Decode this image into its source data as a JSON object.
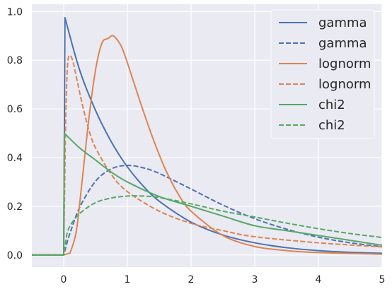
{
  "chart_data": {
    "type": "line",
    "xlim": [
      -0.5,
      5
    ],
    "ylim": [
      -0.05,
      1.03
    ],
    "grid": true,
    "legend_position": "top-right",
    "colors": {
      "background": "#eaeaf2",
      "grid": "#ffffff",
      "gamma": "#4c72b0",
      "lognorm": "#dd8452",
      "chi2": "#55a868"
    },
    "x_ticks": [
      {
        "value": 0,
        "label": "0"
      },
      {
        "value": 1,
        "label": "1"
      },
      {
        "value": 2,
        "label": "2"
      },
      {
        "value": 3,
        "label": "3"
      },
      {
        "value": 4,
        "label": "4"
      },
      {
        "value": 5,
        "label": "5"
      }
    ],
    "y_ticks": [
      {
        "value": 0.0,
        "label": "0.0"
      },
      {
        "value": 0.2,
        "label": "0.2"
      },
      {
        "value": 0.4,
        "label": "0.4"
      },
      {
        "value": 0.6,
        "label": "0.6"
      },
      {
        "value": 0.8,
        "label": "0.8"
      },
      {
        "value": 1.0,
        "label": "1.0"
      }
    ],
    "series": [
      {
        "name": "gamma",
        "color": "#4c72b0",
        "dashed": false,
        "x": [
          -0.5,
          0,
          0.02,
          0.25,
          0.5,
          0.75,
          1.0,
          1.25,
          1.5,
          2.0,
          2.5,
          3.0,
          3.5,
          4.0,
          4.5,
          5.0
        ],
        "y": [
          0,
          0,
          0.975,
          0.76,
          0.594,
          0.464,
          0.362,
          0.283,
          0.221,
          0.135,
          0.082,
          0.05,
          0.03,
          0.018,
          0.011,
          0.007
        ]
      },
      {
        "name": "gamma",
        "color": "#4c72b0",
        "dashed": true,
        "x": [
          -0.5,
          0,
          0.05,
          0.1,
          0.25,
          0.5,
          0.75,
          1.0,
          1.25,
          1.5,
          2.0,
          2.5,
          3.0,
          3.5,
          4.0,
          4.5,
          5.0
        ],
        "y": [
          0,
          0,
          0.048,
          0.09,
          0.195,
          0.303,
          0.354,
          0.368,
          0.358,
          0.335,
          0.271,
          0.205,
          0.149,
          0.106,
          0.073,
          0.05,
          0.034
        ]
      },
      {
        "name": "lognorm",
        "color": "#dd8452",
        "dashed": false,
        "x": [
          -0.5,
          0,
          0.1,
          0.2,
          0.3,
          0.4,
          0.5,
          0.6,
          0.7,
          0.78,
          0.9,
          1.0,
          1.2,
          1.4,
          1.6,
          1.8,
          2.0,
          2.5,
          3.0,
          3.5,
          4.0,
          5.0
        ],
        "y": [
          0,
          0,
          0.008,
          0.1,
          0.33,
          0.57,
          0.76,
          0.87,
          0.89,
          0.9,
          0.86,
          0.79,
          0.63,
          0.48,
          0.35,
          0.25,
          0.18,
          0.08,
          0.035,
          0.018,
          0.01,
          0.003
        ]
      },
      {
        "name": "lognorm",
        "color": "#dd8452",
        "dashed": true,
        "x": [
          -0.5,
          0,
          0.03,
          0.06,
          0.1,
          0.15,
          0.2,
          0.3,
          0.4,
          0.5,
          0.75,
          1.0,
          1.5,
          2.0,
          2.5,
          3.0,
          4.0,
          5.0
        ],
        "y": [
          0,
          0,
          0.55,
          0.78,
          0.82,
          0.79,
          0.73,
          0.61,
          0.51,
          0.44,
          0.33,
          0.26,
          0.18,
          0.13,
          0.1,
          0.075,
          0.05,
          0.033
        ]
      },
      {
        "name": "chi2",
        "color": "#55a868",
        "dashed": false,
        "x": [
          -0.5,
          0,
          0.01,
          0.25,
          0.5,
          0.75,
          1.0,
          1.5,
          2.0,
          2.5,
          3.0,
          3.5,
          4.0,
          4.5,
          5.0
        ],
        "y": [
          0,
          0,
          0.5,
          0.44,
          0.39,
          0.34,
          0.3,
          0.24,
          0.2,
          0.16,
          0.12,
          0.1,
          0.08,
          0.06,
          0.04
        ]
      },
      {
        "name": "chi2",
        "color": "#55a868",
        "dashed": true,
        "x": [
          -0.5,
          0,
          0.05,
          0.1,
          0.25,
          0.5,
          0.75,
          1.0,
          1.25,
          1.5,
          2.0,
          2.5,
          3.0,
          3.5,
          4.0,
          4.5,
          5.0
        ],
        "y": [
          0,
          0,
          0.085,
          0.12,
          0.17,
          0.215,
          0.234,
          0.242,
          0.242,
          0.236,
          0.21,
          0.18,
          0.156,
          0.131,
          0.108,
          0.088,
          0.072
        ]
      }
    ]
  }
}
